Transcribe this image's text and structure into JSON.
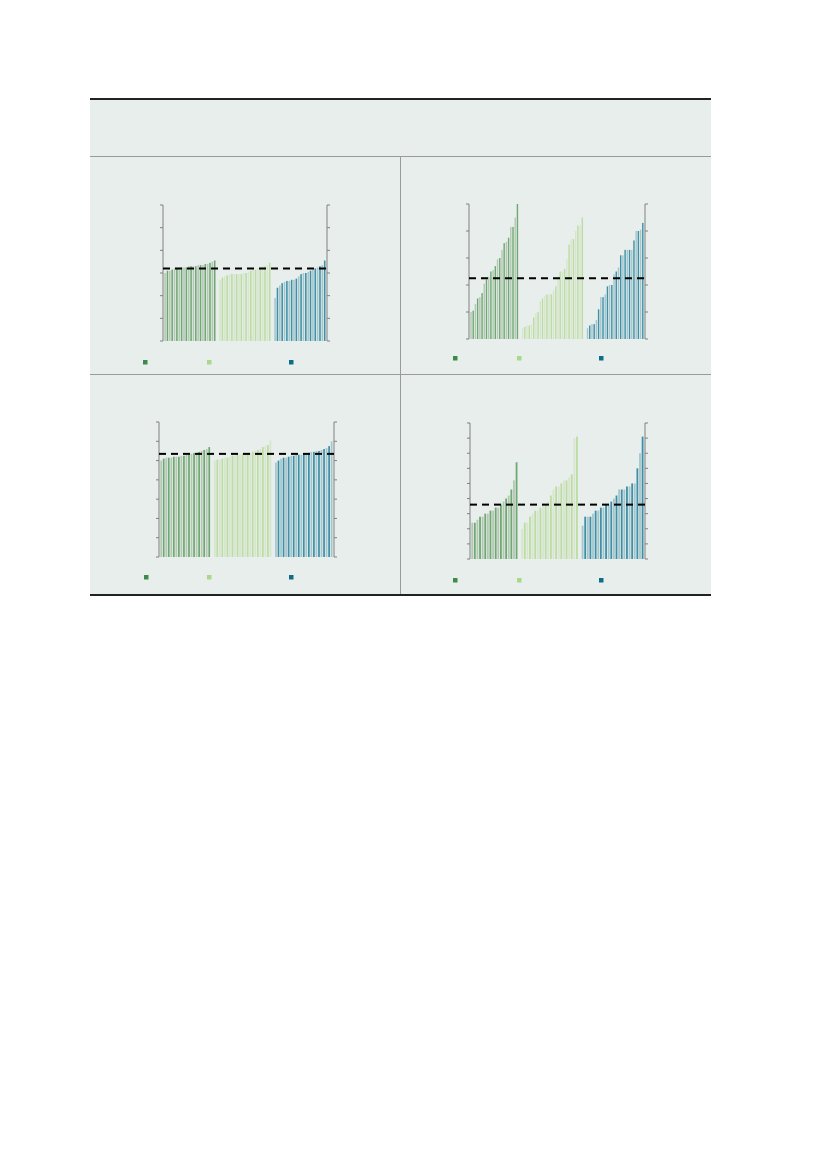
{
  "colors": {
    "group1": {
      "legend": "#3f8a4a",
      "dark": "#6fa872",
      "light": "#b3c8b3"
    },
    "group2": {
      "legend": "#a8d88a",
      "dark": "#bcdca2",
      "light": "#d6e6cc"
    },
    "group3": {
      "legend": "#0e6e85",
      "dark": "#3d90a8",
      "light": "#a3c6cd"
    },
    "reference_line": "#000000",
    "background": "#e8eeeb"
  },
  "chart_data": [
    {
      "type": "bar",
      "ylim": [
        0,
        6
      ],
      "grid": false,
      "reference_line": 3.2,
      "legend_placement": "bottom",
      "series": [
        {
          "values": [
            3.0,
            3.1,
            3.1,
            3.15,
            3.2,
            3.2,
            3.2,
            3.25,
            3.25,
            3.25,
            3.3,
            3.3,
            3.3,
            3.3,
            3.35,
            3.35,
            3.35,
            3.4,
            3.4,
            3.45,
            3.5,
            3.55
          ]
        },
        {
          "values": [
            2.7,
            2.8,
            2.85,
            2.9,
            2.95,
            2.95,
            2.95,
            2.95,
            2.95,
            2.95,
            3.0,
            3.0,
            3.05,
            3.1,
            3.15,
            3.15,
            3.2,
            3.25,
            3.3,
            3.3,
            3.35,
            3.45
          ]
        },
        {
          "values": [
            1.9,
            2.35,
            2.45,
            2.55,
            2.6,
            2.65,
            2.65,
            2.7,
            2.7,
            2.75,
            2.85,
            2.95,
            3.0,
            3.0,
            3.05,
            3.1,
            3.15,
            3.2,
            3.25,
            3.3,
            3.35,
            3.55
          ]
        }
      ]
    },
    {
      "type": "bar",
      "ylim": [
        0,
        5
      ],
      "grid": false,
      "reference_line": 2.25,
      "legend_placement": "bottom",
      "series": [
        {
          "values": [
            1.0,
            1.05,
            1.3,
            1.5,
            1.55,
            1.7,
            2.05,
            2.2,
            2.3,
            2.5,
            2.55,
            2.7,
            2.95,
            3.0,
            3.3,
            3.55,
            3.6,
            3.75,
            4.15,
            4.15,
            4.5,
            5.0
          ]
        },
        {
          "values": [
            0.4,
            0.45,
            0.5,
            0.5,
            0.55,
            0.8,
            0.95,
            1.0,
            1.4,
            1.5,
            1.6,
            1.65,
            1.65,
            1.65,
            1.8,
            1.95,
            2.3,
            2.5,
            2.5,
            2.6,
            2.95,
            3.5,
            3.7,
            3.7,
            4.0,
            4.2,
            4.2,
            4.5
          ]
        },
        {
          "values": [
            0.4,
            0.5,
            0.55,
            0.55,
            0.7,
            1.1,
            1.55,
            1.55,
            1.65,
            1.95,
            2.0,
            2.0,
            2.4,
            2.5,
            2.65,
            3.1,
            3.1,
            3.3,
            3.3,
            3.3,
            3.3,
            3.65,
            4.0,
            4.0,
            4.05,
            4.3
          ]
        }
      ]
    },
    {
      "type": "bar",
      "ylim": [
        0,
        7
      ],
      "grid": false,
      "reference_line": 5.35,
      "legend_placement": "bottom",
      "series": [
        {
          "values": [
            5.0,
            5.1,
            5.15,
            5.15,
            5.15,
            5.2,
            5.2,
            5.2,
            5.25,
            5.25,
            5.3,
            5.3,
            5.35,
            5.4,
            5.4,
            5.45,
            5.5,
            5.55,
            5.6,
            5.7
          ]
        },
        {
          "values": [
            5.0,
            5.05,
            5.05,
            5.1,
            5.15,
            5.15,
            5.2,
            5.25,
            5.25,
            5.3,
            5.3,
            5.35,
            5.35,
            5.4,
            5.4,
            5.45,
            5.5,
            5.55,
            5.6,
            5.7,
            5.75,
            5.8,
            6.05
          ]
        },
        {
          "values": [
            4.9,
            5.0,
            5.1,
            5.15,
            5.15,
            5.2,
            5.25,
            5.25,
            5.3,
            5.3,
            5.3,
            5.35,
            5.35,
            5.4,
            5.45,
            5.45,
            5.5,
            5.5,
            5.55,
            5.6,
            5.65,
            5.75,
            6.0
          ]
        }
      ]
    },
    {
      "type": "bar",
      "ylim": [
        0,
        9
      ],
      "grid": false,
      "reference_line": 3.6,
      "legend_placement": "bottom",
      "series": [
        {
          "values": [
            2.4,
            2.4,
            2.6,
            2.8,
            2.8,
            3.0,
            3.0,
            3.2,
            3.2,
            3.4,
            3.4,
            3.6,
            3.8,
            4.0,
            4.2,
            4.6,
            5.2,
            6.4
          ]
        },
        {
          "values": [
            2.0,
            2.4,
            2.4,
            2.8,
            3.0,
            3.2,
            3.2,
            3.4,
            3.6,
            3.6,
            3.8,
            4.2,
            4.6,
            4.8,
            4.8,
            5.0,
            5.2,
            5.2,
            5.4,
            5.6,
            8.0,
            8.1
          ]
        },
        {
          "values": [
            2.2,
            2.8,
            2.8,
            2.8,
            3.0,
            3.2,
            3.2,
            3.4,
            3.4,
            3.6,
            3.6,
            3.8,
            4.0,
            4.2,
            4.6,
            4.6,
            4.6,
            4.8,
            4.8,
            5.0,
            5.0,
            6.0,
            7.0,
            8.1
          ]
        }
      ]
    }
  ]
}
